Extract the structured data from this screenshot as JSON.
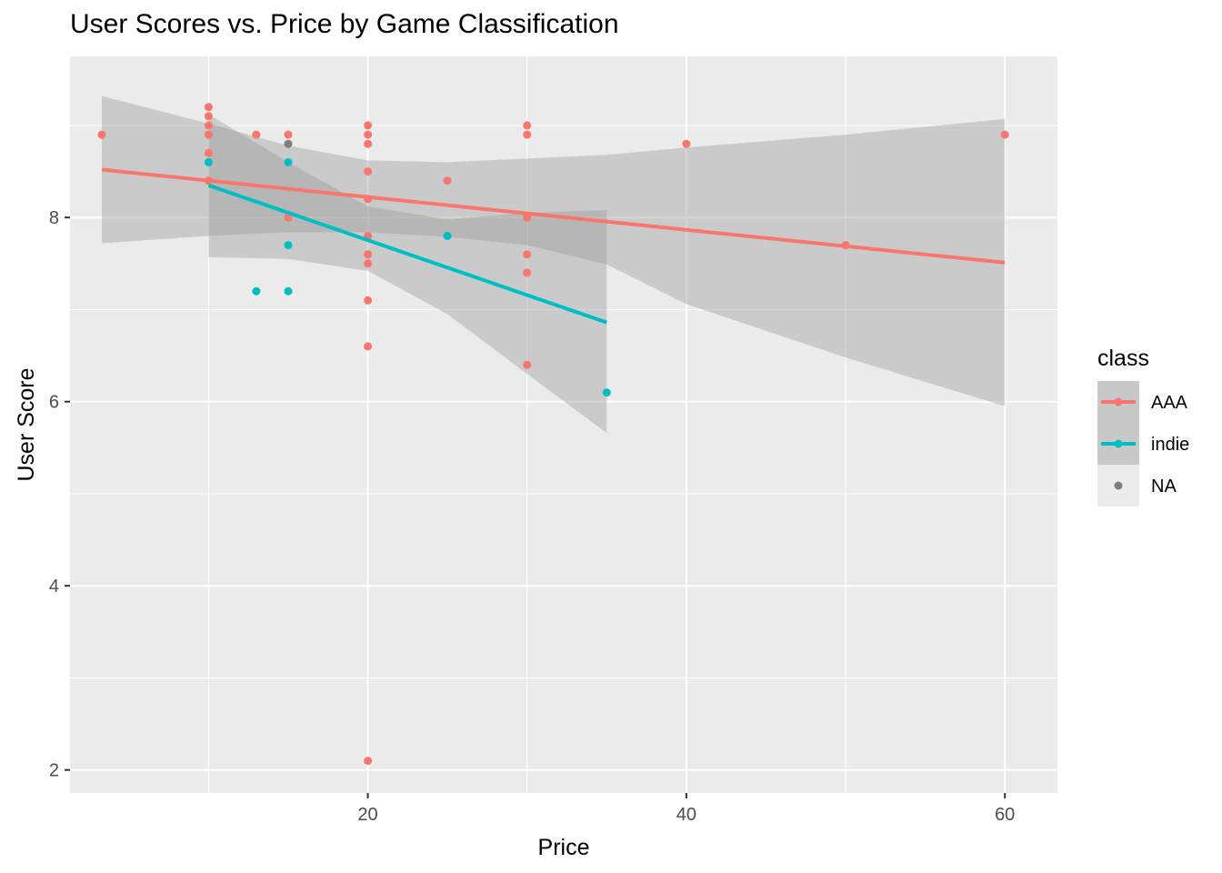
{
  "chart_data": {
    "type": "scatter",
    "title": "User Scores vs. Price by Game Classification",
    "xlabel": "Price",
    "ylabel": "User Score",
    "xlim": [
      1.3,
      63.3
    ],
    "ylim": [
      1.75,
      9.75
    ],
    "x_ticks": [
      20,
      40,
      60
    ],
    "y_ticks": [
      2,
      4,
      6,
      8
    ],
    "grid": true,
    "legend": {
      "title": "class",
      "placement": "right"
    },
    "series": [
      {
        "name": "AAA",
        "color": "#F8766D",
        "points": [
          [
            3.3,
            8.9
          ],
          [
            10,
            9.2
          ],
          [
            10,
            9.1
          ],
          [
            10,
            9.0
          ],
          [
            10,
            8.9
          ],
          [
            10,
            8.7
          ],
          [
            10,
            8.4
          ],
          [
            13,
            8.9
          ],
          [
            15,
            8.9
          ],
          [
            15,
            8.0
          ],
          [
            20,
            9.0
          ],
          [
            20,
            8.9
          ],
          [
            20,
            8.8
          ],
          [
            20,
            8.5
          ],
          [
            20,
            8.2
          ],
          [
            20,
            7.8
          ],
          [
            20,
            7.6
          ],
          [
            20,
            7.5
          ],
          [
            20,
            7.1
          ],
          [
            20,
            6.6
          ],
          [
            20,
            2.1
          ],
          [
            25,
            8.4
          ],
          [
            30,
            9.0
          ],
          [
            30,
            8.9
          ],
          [
            30,
            8.0
          ],
          [
            30,
            7.6
          ],
          [
            30,
            7.4
          ],
          [
            30,
            6.4
          ],
          [
            40,
            8.8
          ],
          [
            50,
            7.7
          ],
          [
            60,
            8.9
          ]
        ],
        "fit": {
          "x": [
            3.3,
            60
          ],
          "y": [
            8.52,
            7.51
          ]
        },
        "band": {
          "x": [
            3.3,
            10,
            15,
            20,
            25,
            30,
            35,
            40,
            50,
            60
          ],
          "lower": [
            7.72,
            7.8,
            7.84,
            7.84,
            7.79,
            7.7,
            7.49,
            7.06,
            6.48,
            5.95
          ],
          "upper": [
            9.32,
            9.02,
            8.78,
            8.62,
            8.6,
            8.64,
            8.68,
            8.76,
            8.9,
            9.07
          ]
        }
      },
      {
        "name": "indie",
        "color": "#00BFC4",
        "points": [
          [
            10,
            8.6
          ],
          [
            13,
            7.2
          ],
          [
            15,
            8.6
          ],
          [
            15,
            7.7
          ],
          [
            15,
            7.2
          ],
          [
            25,
            7.8
          ],
          [
            35,
            6.1
          ]
        ],
        "fit": {
          "x": [
            10,
            35
          ],
          "y": [
            8.35,
            6.86
          ]
        },
        "band": {
          "x": [
            10,
            15,
            20,
            25,
            30,
            35
          ],
          "lower": [
            7.57,
            7.55,
            7.42,
            6.95,
            6.3,
            5.66
          ],
          "upper": [
            9.12,
            8.6,
            8.12,
            7.98,
            8.05,
            8.08
          ]
        }
      },
      {
        "name": "NA",
        "color": "#7F7F7F",
        "points": [
          [
            15,
            8.8
          ]
        ]
      }
    ]
  }
}
